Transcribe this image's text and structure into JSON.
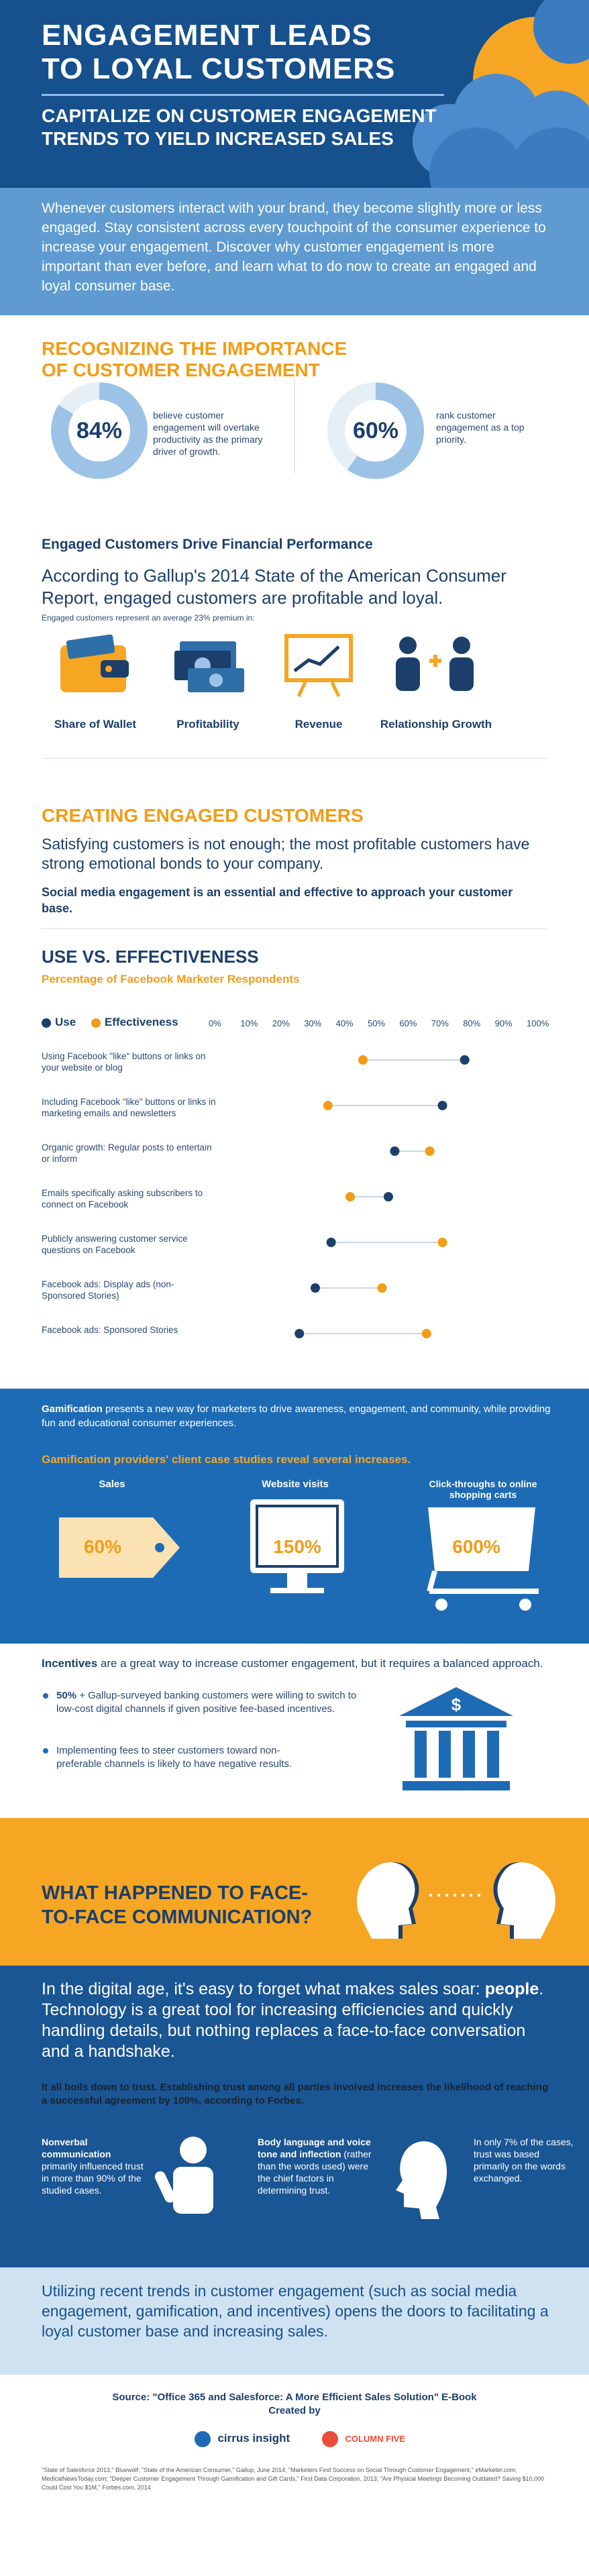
{
  "hero": {
    "title": "ENGAGEMENT LEADS TO LOYAL CUSTOMERS",
    "subtitle": "CAPITALIZE ON CUSTOMER ENGAGEMENT TRENDS TO YIELD INCREASED SALES"
  },
  "intro": "Whenever customers interact with your brand, they become slightly more or less engaged. Stay consistent across every touchpoint of the consumer experience to increase your engagement. Discover why customer engagement is more important than ever before, and learn what to do now to create an engaged and loyal consumer base.",
  "recognizing": {
    "heading": "RECOGNIZING THE IMPORTANCE OF CUSTOMER ENGAGEMENT",
    "stats": [
      {
        "value": "84%",
        "fraction": 0.84,
        "text": "believe customer engagement will overtake productivity as the primary driver of growth."
      },
      {
        "value": "60%",
        "fraction": 0.6,
        "text": "rank customer engagement as a top priority."
      }
    ]
  },
  "engaged": {
    "heading": "Engaged Customers Drive Financial Performance",
    "body": "According to Gallup's 2014 State of the American Consumer Report, engaged customers are profitable and loyal.",
    "note": "Engaged customers represent an average 23% premium in:",
    "items": [
      {
        "label": "Share of Wallet",
        "icon": "wallet-icon"
      },
      {
        "label": "Profitability",
        "icon": "money-icon"
      },
      {
        "label": "Revenue",
        "icon": "chart-board-icon"
      },
      {
        "label": "Relationship Growth",
        "icon": "people-plus-icon"
      }
    ]
  },
  "creating": {
    "heading": "CREATING ENGAGED CUSTOMERS",
    "body": "Satisfying customers is not enough; the most profitable customers have strong emotional bonds to your company.",
    "bold": "Social media engagement is an essential and effective to approach your customer base."
  },
  "chart_data": {
    "type": "scatter",
    "title": "USE VS. EFFECTIVENESS",
    "subtitle": "Percentage of Facebook Marketer Respondents",
    "series": [
      {
        "name": "Use",
        "color": "#1c3f6b",
        "values": [
          78,
          71,
          56,
          54,
          36,
          31,
          26
        ]
      },
      {
        "name": "Effectiveness",
        "color": "#f39c17",
        "values": [
          46,
          35,
          67,
          42,
          71,
          52,
          66
        ]
      }
    ],
    "categories": [
      "Using Facebook \"like\" buttons or links on your website or blog",
      "Including Facebook \"like\" buttons or links in marketing emails and newsletters",
      "Organic growth: Regular posts to entertain or inform",
      "Emails specifically asking subscribers to connect on Facebook",
      "Publicly answering customer service questions on Facebook",
      "Facebook ads: Display ads (non-Sponsored Stories)",
      "Facebook ads: Sponsored Stories"
    ],
    "ticks": [
      "0%",
      "10%",
      "20%",
      "30%",
      "40%",
      "50%",
      "60%",
      "70%",
      "80%",
      "90%",
      "100%"
    ],
    "xlim": [
      0,
      100
    ]
  },
  "gamification": {
    "intro_bold": "Gamification",
    "intro": "presents a new way for marketers to drive awareness, engagement, and community, while providing fun and educational consumer experiences.",
    "sub": "Gamification providers' client case studies reveal several increases.",
    "items": [
      {
        "label": "Sales",
        "value": "60%",
        "icon": "price-tag-icon"
      },
      {
        "label": "Website visits",
        "value": "150%",
        "icon": "monitor-icon"
      },
      {
        "label": "Click-throughs to online shopping carts",
        "value": "600%",
        "icon": "shopping-cart-icon"
      }
    ]
  },
  "incentives": {
    "lead_bold": "Incentives",
    "lead": "are a great way to increase customer engagement, but it requires a balanced approach.",
    "b1_bold": "50%",
    "b1": "+ Gallup-surveyed banking customers were willing to switch to low-cost digital channels if given positive fee-based incentives.",
    "b2": "Implementing fees to steer customers toward non-preferable channels is likely to have negative results."
  },
  "face": {
    "heading": "WHAT HAPPENED TO FACE-TO-FACE COMMUNICATION?"
  },
  "digital": {
    "lead": "In the digital age, it's easy to forget what makes sales soar:",
    "lead_bold": "people",
    "lead2": ". Technology is a great tool for increasing efficiencies and quickly handling details, but nothing replaces a face-to-face conversation and a handshake.",
    "trust": "It all boils down to trust. Establishing trust among all parties involved increases the likelihood of reaching a successful agreement by 100%, according to Forbes.",
    "col1_bold": "Nonverbal communication",
    "col1": "primarily influenced trust in more than 90% of the studied cases.",
    "col2_bold": "Body language and voice tone and inflection",
    "col2": "(rather than the words used) were the chief factors in determining trust.",
    "col3": "In only 7% of the cases, trust was based primarily on the words exchanged."
  },
  "closing": "Utilizing recent trends in customer engagement (such as social media engagement, gamification, and incentives) opens the doors to facilitating a loyal customer base and increasing sales.",
  "footer": {
    "source": "Source: \"Office 365 and Salesforce: A More Efficient Sales Solution\" E-Book Created by",
    "logo1": "cirrus insight",
    "logo2": "COLUMN FIVE",
    "notes": "\"State of Salesforce 2013,\" Bluewolf; \"State of the American Consumer,\" Gallup, June 2014; \"Marketers Find Success on Social Through Customer Engagement,\" eMarketer.com; MedicalNewsToday.com; \"Deeper Customer Engagement Through Gamification and Gift Cards,\" First Data Corporation, 2013; \"Are Physical Meetings Becoming Outdated? Saving $10,000 Could Cost You $1M,\" Forbes.com, 2014"
  },
  "colors": {
    "navy": "#16508d",
    "orange": "#f39c17",
    "lightblue": "#5f9bd1",
    "blue": "#1e6bb5"
  }
}
